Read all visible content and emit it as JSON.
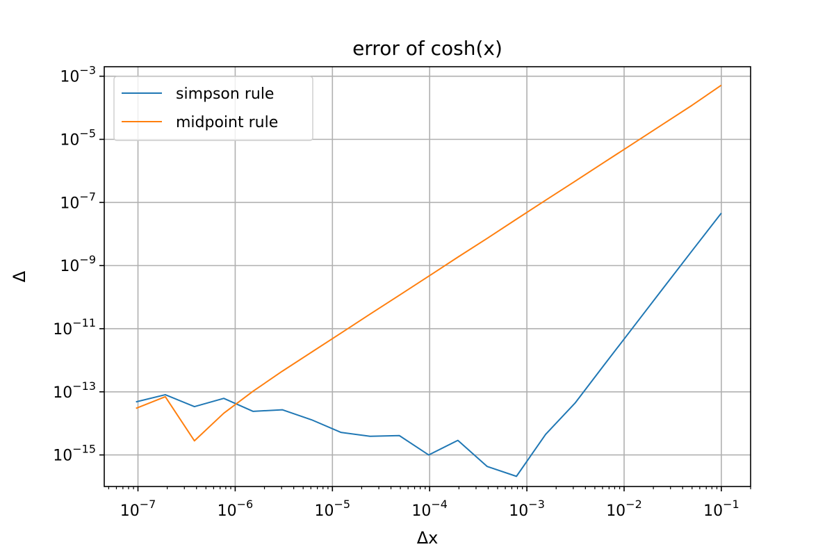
{
  "chart_data": {
    "type": "line",
    "title": "error of cosh(x)",
    "xlabel": "Δx",
    "ylabel": "Δ",
    "xscale": "log",
    "yscale": "log",
    "xlim": [
      4.5e-08,
      0.2
    ],
    "ylim": [
      1e-16,
      0.002
    ],
    "grid": true,
    "legend_position": "top-left",
    "x_ticks": [
      {
        "value": 1e-07,
        "base": "10",
        "exp": "−7"
      },
      {
        "value": 1e-06,
        "base": "10",
        "exp": "−6"
      },
      {
        "value": 1e-05,
        "base": "10",
        "exp": "−5"
      },
      {
        "value": 0.0001,
        "base": "10",
        "exp": "−4"
      },
      {
        "value": 0.001,
        "base": "10",
        "exp": "−3"
      },
      {
        "value": 0.01,
        "base": "10",
        "exp": "−2"
      },
      {
        "value": 0.1,
        "base": "10",
        "exp": "−1"
      }
    ],
    "y_ticks": [
      {
        "value": 1e-15,
        "base": "10",
        "exp": "−15"
      },
      {
        "value": 1e-13,
        "base": "10",
        "exp": "−13"
      },
      {
        "value": 1e-11,
        "base": "10",
        "exp": "−11"
      },
      {
        "value": 1e-09,
        "base": "10",
        "exp": "−9"
      },
      {
        "value": 1e-07,
        "base": "10",
        "exp": "−7"
      },
      {
        "value": 1e-05,
        "base": "10",
        "exp": "−5"
      },
      {
        "value": 0.001,
        "base": "10",
        "exp": "−3"
      }
    ],
    "x": [
      9.54e-08,
      1.91e-07,
      3.81e-07,
      7.63e-07,
      1.53e-06,
      3.05e-06,
      6.1e-06,
      1.22e-05,
      2.44e-05,
      4.88e-05,
      9.77e-05,
      0.000195,
      0.000391,
      0.000781,
      0.00156,
      0.00313,
      0.00625,
      0.0125,
      0.025,
      0.05,
      0.1
    ],
    "series": [
      {
        "name": "simpson rule",
        "color": "#1f77b4",
        "values": [
          4.8e-14,
          8.1e-14,
          3.4e-14,
          6.2e-14,
          2.4e-14,
          2.7e-14,
          1.3e-14,
          5.2e-15,
          3.9e-15,
          4.1e-15,
          1e-15,
          2.9e-15,
          4.3e-16,
          2.1e-16,
          4.5e-15,
          4.4e-14,
          7.2e-13,
          1.15e-11,
          1.85e-10,
          2.95e-09,
          4.6e-08
        ]
      },
      {
        "name": "midpoint rule",
        "color": "#ff7f0e",
        "values": [
          3e-14,
          7e-14,
          2.8e-15,
          2.1e-14,
          1.05e-13,
          4.5e-13,
          1.8e-12,
          7.2e-12,
          2.9e-11,
          1.15e-10,
          4.6e-10,
          1.85e-09,
          7.3e-09,
          2.95e-08,
          1.18e-07,
          4.7e-07,
          1.88e-06,
          7.5e-06,
          3e-05,
          0.00012,
          0.00052
        ]
      }
    ]
  }
}
